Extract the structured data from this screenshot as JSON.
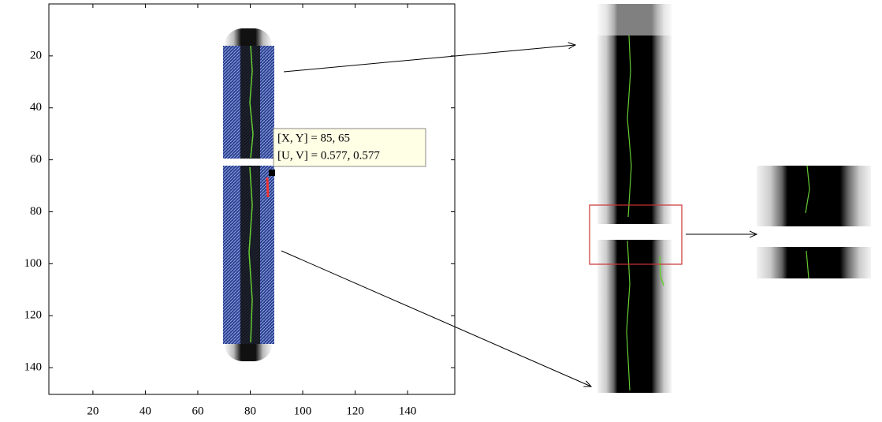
{
  "chart_data": {
    "type": "image",
    "xlim": [
      3.2,
      158
    ],
    "ylim": [
      0,
      150.3
    ],
    "y_reversed": true,
    "xticks": [
      20,
      40,
      60,
      80,
      100,
      120,
      140
    ],
    "yticks": [
      20,
      40,
      60,
      80,
      100,
      120,
      140
    ],
    "annotations": [
      "[X, Y] = 85, 65",
      "[U, V] = 0.577, 0.577"
    ]
  }
}
